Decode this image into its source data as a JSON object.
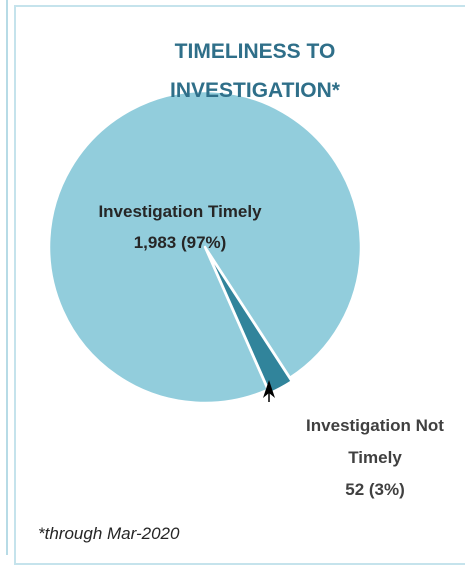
{
  "chart_data": {
    "type": "pie",
    "title": "TIMELINESS TO INVESTIGATION*",
    "categories": [
      "Investigation Timely",
      "Investigation Not Timely"
    ],
    "values": [
      1983,
      52
    ],
    "value_labels": [
      "1,983 (97%)",
      "52 (3%)"
    ],
    "colors": [
      "#92cddc",
      "#31849b"
    ],
    "footnote": "*through Mar-2020"
  }
}
